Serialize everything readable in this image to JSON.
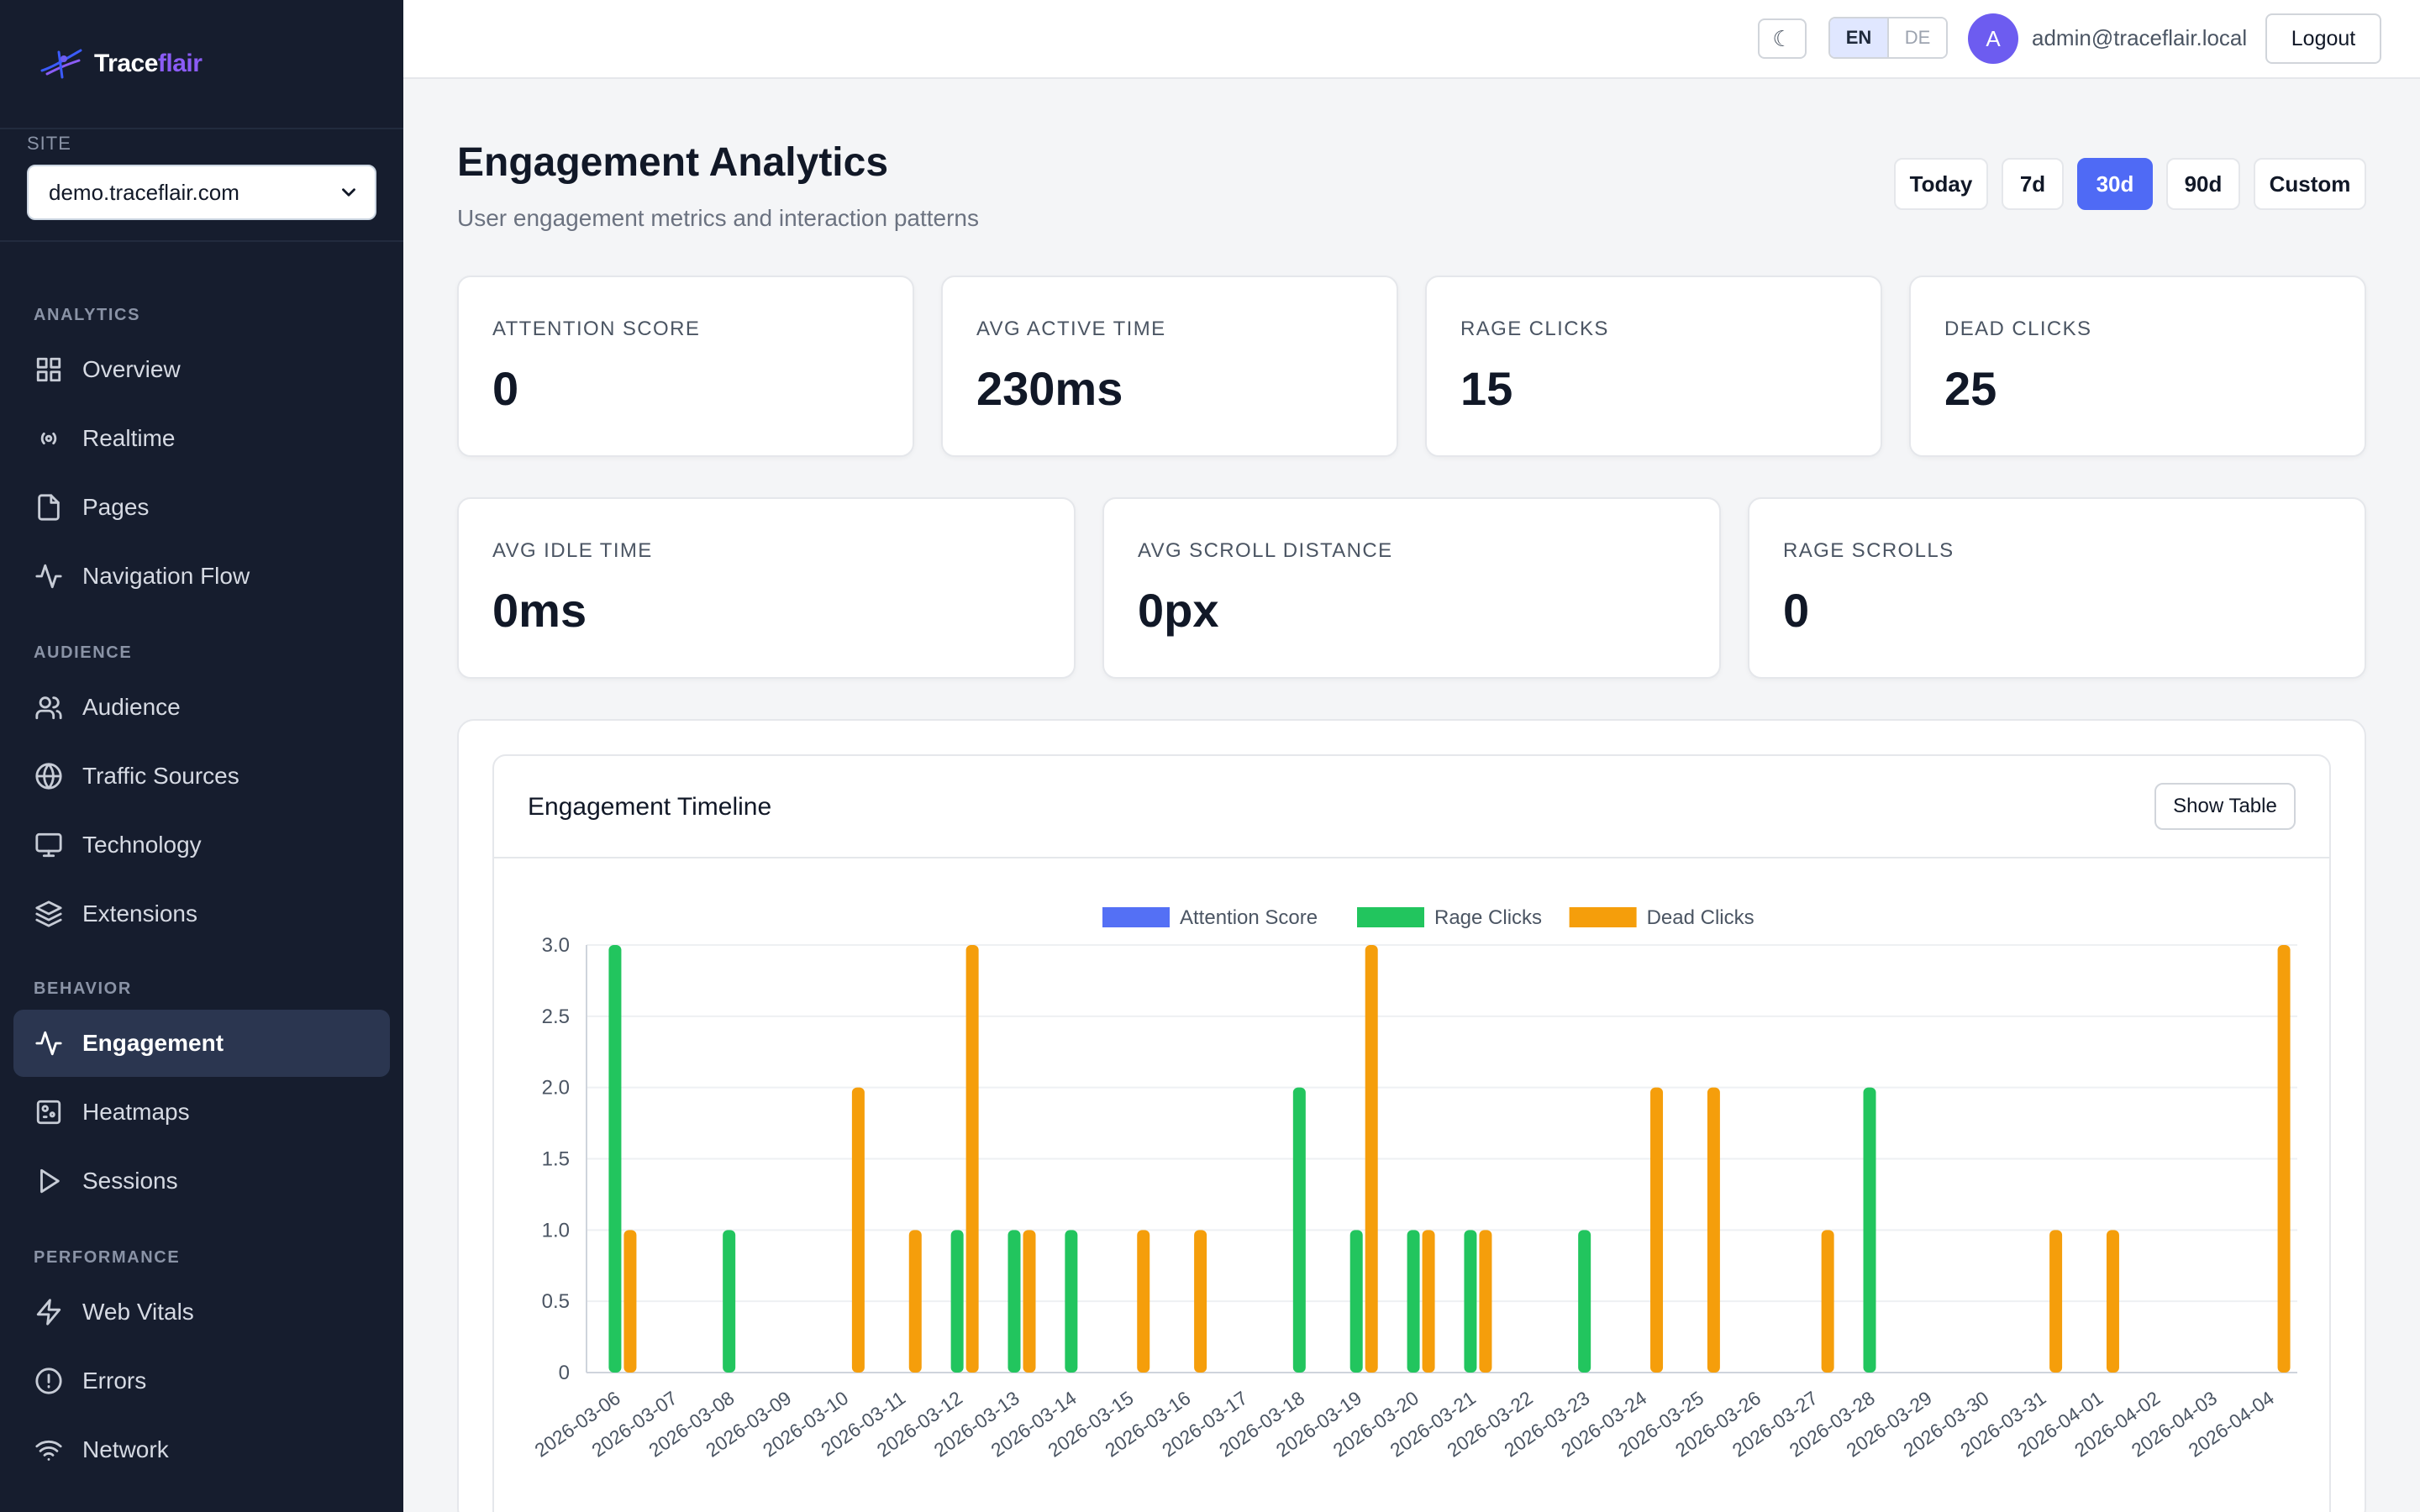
{
  "brand": {
    "name_part1": "Trace",
    "name_part2": "flair"
  },
  "site": {
    "label": "SITE",
    "selected": "demo.traceflair.com"
  },
  "sidebar": {
    "sections": [
      {
        "label": "ANALYTICS",
        "items": [
          {
            "label": "Overview",
            "icon": "grid-icon"
          },
          {
            "label": "Realtime",
            "icon": "broadcast-icon"
          },
          {
            "label": "Pages",
            "icon": "file-icon"
          },
          {
            "label": "Navigation Flow",
            "icon": "activity-icon"
          }
        ]
      },
      {
        "label": "AUDIENCE",
        "items": [
          {
            "label": "Audience",
            "icon": "users-icon"
          },
          {
            "label": "Traffic Sources",
            "icon": "globe-icon"
          },
          {
            "label": "Technology",
            "icon": "monitor-icon"
          },
          {
            "label": "Extensions",
            "icon": "layers-icon"
          }
        ]
      },
      {
        "label": "BEHAVIOR",
        "items": [
          {
            "label": "Engagement",
            "icon": "activity-icon",
            "active": true
          },
          {
            "label": "Heatmaps",
            "icon": "heatmap-icon"
          },
          {
            "label": "Sessions",
            "icon": "play-icon"
          }
        ]
      },
      {
        "label": "PERFORMANCE",
        "items": [
          {
            "label": "Web Vitals",
            "icon": "bolt-icon"
          },
          {
            "label": "Errors",
            "icon": "alert-circle-icon"
          },
          {
            "label": "Network",
            "icon": "wifi-icon"
          }
        ]
      }
    ]
  },
  "topbar": {
    "theme_icon": "☾",
    "lang_en": "EN",
    "lang_de": "DE",
    "avatar_initial": "A",
    "email": "admin@traceflair.local",
    "logout": "Logout"
  },
  "header": {
    "title": "Engagement Analytics",
    "subtitle": "User engagement metrics and interaction patterns",
    "ranges": [
      "Today",
      "7d",
      "30d",
      "90d",
      "Custom"
    ],
    "active_range": "30d"
  },
  "stats_row1": [
    {
      "label": "ATTENTION SCORE",
      "value": "0"
    },
    {
      "label": "AVG ACTIVE TIME",
      "value": "230ms"
    },
    {
      "label": "RAGE CLICKS",
      "value": "15"
    },
    {
      "label": "DEAD CLICKS",
      "value": "25"
    }
  ],
  "stats_row2": [
    {
      "label": "AVG IDLE TIME",
      "value": "0ms"
    },
    {
      "label": "AVG SCROLL DISTANCE",
      "value": "0px"
    },
    {
      "label": "RAGE SCROLLS",
      "value": "0"
    }
  ],
  "chart_panel": {
    "title": "Engagement Timeline",
    "show_table": "Show Table"
  },
  "colors": {
    "attention": "#5470f5",
    "rage": "#22c55e",
    "dead": "#f59e0b",
    "accent": "#4f6af5",
    "sidebar_bg": "#161d2e"
  },
  "chart_data": {
    "type": "bar",
    "categories": [
      "2026-03-06",
      "2026-03-07",
      "2026-03-08",
      "2026-03-09",
      "2026-03-10",
      "2026-03-11",
      "2026-03-12",
      "2026-03-13",
      "2026-03-14",
      "2026-03-15",
      "2026-03-16",
      "2026-03-17",
      "2026-03-18",
      "2026-03-19",
      "2026-03-20",
      "2026-03-21",
      "2026-03-22",
      "2026-03-23",
      "2026-03-24",
      "2026-03-25",
      "2026-03-26",
      "2026-03-27",
      "2026-03-28",
      "2026-03-29",
      "2026-03-30",
      "2026-03-31",
      "2026-04-01",
      "2026-04-02",
      "2026-04-03",
      "2026-04-04"
    ],
    "series": [
      {
        "name": "Attention Score",
        "color": "#5470f5",
        "values": [
          0,
          0,
          0,
          0,
          0,
          0,
          0,
          0,
          0,
          0,
          0,
          0,
          0,
          0,
          0,
          0,
          0,
          0,
          0,
          0,
          0,
          0,
          0,
          0,
          0,
          0,
          0,
          0,
          0,
          0
        ]
      },
      {
        "name": "Rage Clicks",
        "color": "#22c55e",
        "values": [
          3,
          0,
          1,
          0,
          0,
          0,
          1,
          1,
          1,
          0,
          0,
          0,
          2,
          1,
          1,
          1,
          0,
          1,
          0,
          0,
          0,
          0,
          2,
          0,
          0,
          0,
          0,
          0,
          0,
          0
        ]
      },
      {
        "name": "Dead Clicks",
        "color": "#f59e0b",
        "values": [
          1,
          0,
          0,
          0,
          2,
          1,
          3,
          1,
          0,
          1,
          1,
          0,
          0,
          3,
          1,
          1,
          0,
          0,
          2,
          2,
          0,
          1,
          0,
          0,
          0,
          1,
          1,
          0,
          0,
          3
        ]
      }
    ],
    "yticks": [
      "0",
      "0.5",
      "1.0",
      "1.5",
      "2.0",
      "2.5",
      "3.0"
    ],
    "ylim": [
      0,
      3
    ],
    "legend_position": "top-center",
    "grid": true
  }
}
